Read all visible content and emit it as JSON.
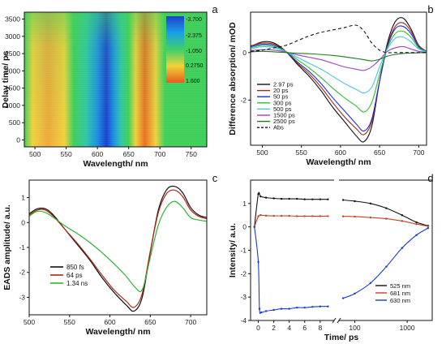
{
  "chart_data": [
    {
      "panel": "a",
      "type": "heatmap",
      "xlabel": "Wavelength/ nm",
      "ylabel": "Delay time/ ps",
      "xlim": [
        483,
        775
      ],
      "ylim": [
        -200,
        3700
      ],
      "xticks": [
        500,
        550,
        600,
        650,
        700,
        750
      ],
      "yticks": [
        0,
        500,
        1000,
        1500,
        2000,
        2500,
        3000,
        3500
      ],
      "colorbar_labels": [
        "-3.700",
        "-2.375",
        "-1.050",
        "0.2750",
        "1.600"
      ],
      "colorbar_colors": [
        "#1f3fd0",
        "#19a0e8",
        "#3fd06a",
        "#f0d238",
        "#e85a1e"
      ],
      "bands": [
        {
          "center": 515,
          "width": 55,
          "value": 0.55
        },
        {
          "center": 617,
          "width": 38,
          "value": -3.5
        },
        {
          "center": 675,
          "width": 28,
          "value": 1.3
        }
      ]
    },
    {
      "panel": "b",
      "type": "line",
      "xlabel": "Wavelength/ nm",
      "ylabel": "Difference absorption/ mOD",
      "xlim": [
        485,
        710
      ],
      "ylim": [
        -3.9,
        1.7
      ],
      "xticks": [
        500,
        550,
        600,
        650,
        700
      ],
      "yticks": [
        -2,
        0
      ],
      "x": [
        485,
        500,
        515,
        530,
        545,
        560,
        575,
        590,
        605,
        620,
        630,
        640,
        650,
        660,
        670,
        680,
        690,
        700,
        710
      ],
      "series": [
        {
          "name": "2.97 ps",
          "color": "#111111",
          "values": [
            0.25,
            0.45,
            0.4,
            0.05,
            -0.5,
            -1.0,
            -1.6,
            -2.3,
            -2.9,
            -3.5,
            -3.75,
            -3.1,
            -1.2,
            0.4,
            1.3,
            1.45,
            1.0,
            0.3,
            0.05
          ]
        },
        {
          "name": "20 ps",
          "color": "#b02418",
          "values": [
            0.28,
            0.4,
            0.35,
            0.05,
            -0.45,
            -0.9,
            -1.45,
            -2.1,
            -2.7,
            -3.2,
            -3.45,
            -2.9,
            -1.2,
            0.3,
            1.1,
            1.25,
            0.9,
            0.3,
            0.05
          ]
        },
        {
          "name": "50 ps",
          "color": "#1a2fe0",
          "values": [
            0.25,
            0.35,
            0.3,
            0.05,
            -0.4,
            -0.8,
            -1.3,
            -1.9,
            -2.45,
            -3.0,
            -3.3,
            -2.8,
            -1.2,
            0.25,
            1.0,
            1.1,
            0.8,
            0.25,
            0.05
          ]
        },
        {
          "name": "300 ps",
          "color": "#2fc12f",
          "values": [
            0.2,
            0.3,
            0.25,
            0.05,
            -0.3,
            -0.65,
            -1.05,
            -1.5,
            -1.9,
            -2.25,
            -2.5,
            -2.1,
            -0.9,
            0.2,
            0.8,
            0.9,
            0.65,
            0.2,
            0.05
          ]
        },
        {
          "name": "500 ps",
          "color": "#47c7ee",
          "values": [
            0.15,
            0.25,
            0.2,
            0.03,
            -0.2,
            -0.45,
            -0.7,
            -1.0,
            -1.3,
            -1.55,
            -1.7,
            -1.45,
            -0.6,
            0.15,
            0.6,
            0.65,
            0.45,
            0.15,
            0.03
          ]
        },
        {
          "name": "1500 ps",
          "color": "#9b42c8",
          "values": [
            0.08,
            0.12,
            0.1,
            0.02,
            -0.1,
            -0.2,
            -0.3,
            -0.45,
            -0.6,
            -0.7,
            -0.75,
            -0.6,
            -0.3,
            0.05,
            0.2,
            0.25,
            0.15,
            0.05,
            0.01
          ]
        },
        {
          "name": "2500 ps",
          "color": "#1f7a1f",
          "values": [
            0.03,
            0.05,
            0.03,
            0.0,
            -0.03,
            -0.05,
            -0.08,
            -0.12,
            -0.18,
            -0.25,
            -0.3,
            -0.35,
            -0.28,
            -0.15,
            -0.08,
            -0.04,
            -0.02,
            -0.01,
            0.0
          ]
        },
        {
          "name": "Abs",
          "color": "#111111",
          "dash": true,
          "values": [
            0.05,
            0.1,
            0.2,
            0.3,
            0.5,
            0.7,
            0.85,
            0.95,
            1.05,
            1.15,
            0.9,
            0.4,
            0.1,
            0.0,
            0.0,
            0.0,
            0.0,
            0.0,
            0.0
          ]
        }
      ]
    },
    {
      "panel": "c",
      "type": "line",
      "xlabel": "Wavelength/ nm",
      "ylabel": "EADS amplitude/ a.u.",
      "xlim": [
        500,
        720
      ],
      "ylim": [
        -3.7,
        1.7
      ],
      "xticks": [
        500,
        550,
        600,
        650,
        700
      ],
      "yticks": [
        -3,
        -2,
        -1,
        0,
        1
      ],
      "x": [
        500,
        510,
        520,
        530,
        545,
        560,
        575,
        590,
        605,
        620,
        630,
        640,
        650,
        660,
        670,
        680,
        690,
        700,
        710,
        720
      ],
      "series": [
        {
          "name": "850 fs",
          "color": "#111111",
          "values": [
            0.35,
            0.55,
            0.55,
            0.3,
            -0.3,
            -0.9,
            -1.5,
            -2.2,
            -2.8,
            -3.3,
            -3.55,
            -3.0,
            -1.2,
            0.5,
            1.3,
            1.45,
            1.2,
            0.6,
            0.3,
            0.2
          ]
        },
        {
          "name": "64 ps",
          "color": "#b02418",
          "values": [
            0.3,
            0.5,
            0.5,
            0.25,
            -0.3,
            -0.85,
            -1.45,
            -2.1,
            -2.7,
            -3.15,
            -3.4,
            -2.85,
            -1.15,
            0.4,
            1.15,
            1.3,
            1.05,
            0.5,
            0.25,
            0.15
          ]
        },
        {
          "name": "1.34 ns",
          "color": "#2fb52f",
          "values": [
            0.25,
            0.45,
            0.4,
            0.2,
            -0.15,
            -0.45,
            -0.8,
            -1.2,
            -1.65,
            -2.15,
            -2.55,
            -2.7,
            -1.4,
            -0.1,
            0.6,
            0.85,
            0.6,
            0.2,
            0.1,
            0.05
          ]
        }
      ]
    },
    {
      "panel": "d",
      "type": "scatter",
      "xlabel": "Time/ ps",
      "ylabel": "Intensity/ a.u.",
      "ylim": [
        -4,
        2
      ],
      "yticks": [
        -4,
        -3,
        -2,
        -1,
        0,
        1
      ],
      "xticks_linear": [
        0,
        2,
        4,
        6,
        8
      ],
      "xticks_log": [
        100,
        1000
      ],
      "series": [
        {
          "name": "525 nm",
          "color": "#111111",
          "lin_x": [
            -0.5,
            0,
            0.3,
            1,
            2,
            3,
            4,
            5,
            6,
            7,
            8,
            9
          ],
          "lin_y": [
            0,
            1.4,
            1.3,
            1.25,
            1.22,
            1.2,
            1.2,
            1.2,
            1.18,
            1.18,
            1.18,
            1.18
          ],
          "log_x": [
            60,
            100,
            200,
            400,
            800,
            1500,
            2500
          ],
          "log_y": [
            1.15,
            1.1,
            1.0,
            0.8,
            0.5,
            0.2,
            0.05
          ]
        },
        {
          "name": "681 nm",
          "color": "#c8401f",
          "lin_x": [
            -0.5,
            0,
            0.3,
            1,
            2,
            3,
            4,
            5,
            6,
            7,
            8,
            9
          ],
          "lin_y": [
            0,
            0.45,
            0.5,
            0.48,
            0.47,
            0.47,
            0.47,
            0.46,
            0.46,
            0.46,
            0.46,
            0.46
          ],
          "log_x": [
            60,
            100,
            200,
            400,
            800,
            1500,
            2500
          ],
          "log_y": [
            0.45,
            0.44,
            0.4,
            0.35,
            0.25,
            0.12,
            0.03
          ]
        },
        {
          "name": "630 nm",
          "color": "#1a3ad0",
          "lin_x": [
            -0.5,
            0,
            0.15,
            0.4,
            1,
            2,
            3,
            4,
            5,
            6,
            7,
            8,
            9
          ],
          "lin_y": [
            0,
            -1.5,
            -3.5,
            -3.65,
            -3.6,
            -3.55,
            -3.5,
            -3.5,
            -3.45,
            -3.45,
            -3.42,
            -3.4,
            -3.4
          ],
          "log_x": [
            60,
            100,
            200,
            400,
            800,
            1500,
            2500
          ],
          "log_y": [
            -3.05,
            -2.85,
            -2.4,
            -1.7,
            -0.9,
            -0.35,
            -0.05
          ]
        }
      ]
    }
  ],
  "panel_labels": [
    "a",
    "b",
    "c",
    "d"
  ]
}
